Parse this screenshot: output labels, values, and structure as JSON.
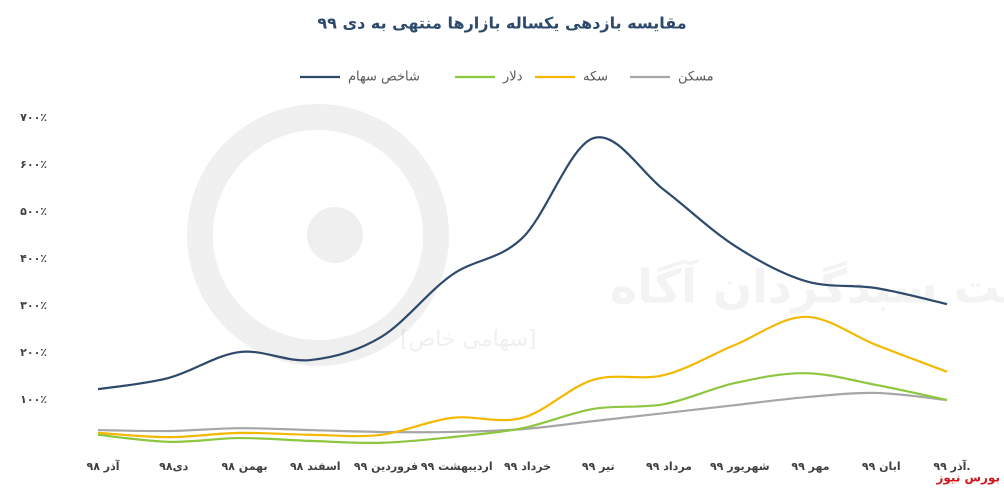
{
  "chart_data": {
    "type": "line",
    "title": "مقایسه بازدهی یکساله بازارها منتهی به دی ۹۹",
    "source": "بورس نیوز",
    "watermark": "شرکت سبدگردان آگاه",
    "watermark_sub": "[سهامی خاص]",
    "categories": [
      "آذر ۹۸",
      "دی۹۸",
      "بهمن ۹۸",
      "اسفند ۹۸",
      "فروردین ۹۹",
      "اردیبهشت ۹۹",
      "خرداد ۹۹",
      "تیر ۹۹",
      "مرداد ۹۹",
      "شهریور ۹۹",
      "مهر ۹۹",
      "ابان ۹۹",
      "آذر ۹۹."
    ],
    "series": [
      {
        "name": "شاخص سهام",
        "color": "#2e4a6b",
        "values": [
          123,
          147,
          202,
          185,
          234,
          366,
          445,
          657,
          547,
          428,
          353,
          338,
          304
        ]
      },
      {
        "name": "دلار",
        "color": "#8dc63f",
        "values": [
          26,
          11,
          19,
          13,
          9,
          21,
          40,
          81,
          91,
          136,
          157,
          132,
          100
        ]
      },
      {
        "name": "سکه",
        "color": "#f5b800",
        "values": [
          30,
          21,
          30,
          26,
          26,
          62,
          62,
          143,
          153,
          217,
          277,
          217,
          160
        ]
      },
      {
        "name": "مسکن",
        "color": "#a6a6a6",
        "values": [
          36,
          34,
          40,
          36,
          32,
          32,
          38,
          55,
          72,
          89,
          106,
          115,
          100
        ]
      }
    ],
    "ylim": [
      0,
      700
    ],
    "yticks": [
      {
        "value": 100,
        "label": "۱۰۰٪"
      },
      {
        "value": 200,
        "label": "۲۰۰٪"
      },
      {
        "value": 300,
        "label": "۳۰۰٪"
      },
      {
        "value": 400,
        "label": "۴۰۰٪"
      },
      {
        "value": 500,
        "label": "۵۰۰٪"
      },
      {
        "value": 600,
        "label": "۶۰۰٪"
      },
      {
        "value": 700,
        "label": "۷۰۰٪"
      }
    ],
    "grid": false
  }
}
